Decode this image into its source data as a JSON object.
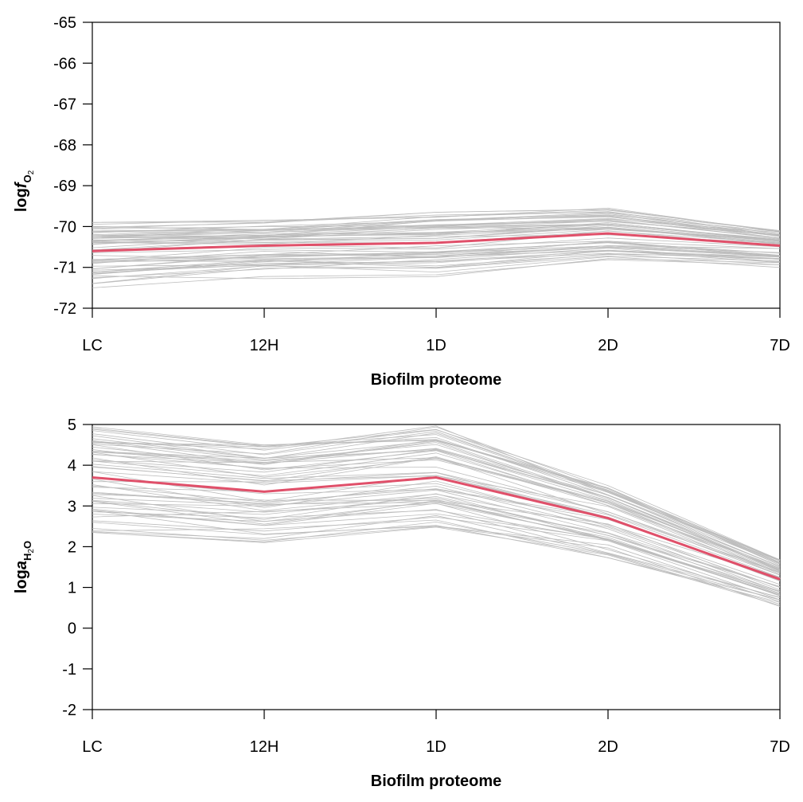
{
  "chart_data": [
    {
      "type": "line",
      "title": "",
      "ylabel": {
        "prefix": "log",
        "var": "f",
        "subscript": "O",
        "subsub": "2"
      },
      "xlabel": "Biofilm proteome",
      "categories": [
        "LC",
        "12H",
        "1D",
        "2D",
        "7D"
      ],
      "ylim": [
        -72,
        -65
      ],
      "yticks": [
        "-65",
        "-66",
        "-67",
        "-68",
        "-69",
        "-70",
        "-71",
        "-72"
      ],
      "colors": {
        "highlight": "#E0506A",
        "background": "#BDBDBD"
      },
      "highlight_series": [
        -70.6,
        -70.47,
        -70.4,
        -70.17,
        -70.47
      ],
      "background_series_summary": {
        "count_approx": 60,
        "range_per_category": [
          [
            -71.5,
            -69.9
          ],
          [
            -71.3,
            -69.85
          ],
          [
            -71.3,
            -69.65
          ],
          [
            -70.9,
            -69.55
          ],
          [
            -71.05,
            -70.1
          ]
        ]
      }
    },
    {
      "type": "line",
      "title": "",
      "ylabel": {
        "prefix": "log",
        "var": "a",
        "subscript": "H",
        "subsub": "2",
        "suffix": "O"
      },
      "xlabel": "Biofilm proteome",
      "categories": [
        "LC",
        "12H",
        "1D",
        "2D",
        "7D"
      ],
      "ylim": [
        -2,
        5
      ],
      "yticks": [
        "5",
        "4",
        "3",
        "2",
        "1",
        "0",
        "-1",
        "-2"
      ],
      "colors": {
        "highlight": "#E0506A",
        "background": "#BDBDBD"
      },
      "highlight_series": [
        3.7,
        3.35,
        3.7,
        2.7,
        1.2
      ],
      "background_series_summary": {
        "count_approx": 60,
        "range_per_category": [
          [
            2.35,
            4.95
          ],
          [
            2.1,
            4.5
          ],
          [
            2.35,
            5.0
          ],
          [
            1.65,
            3.5
          ],
          [
            0.5,
            1.7
          ]
        ]
      }
    }
  ]
}
